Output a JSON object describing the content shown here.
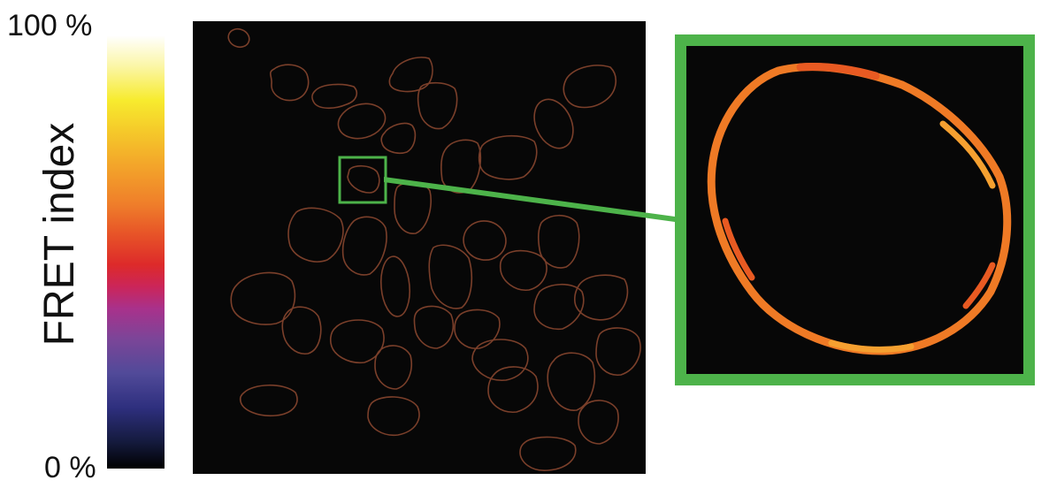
{
  "colorbar": {
    "max_label": "100 %",
    "min_label": "0 %",
    "title": "FRET index",
    "colormap": "black-blue-purple-red-orange-yellow-white"
  },
  "main_image": {
    "background_color": "#070707",
    "outline_color": "#7a3f2a",
    "cell_outline_count": 39
  },
  "inset": {
    "frame_color": "#4db34a",
    "outline_colors": [
      "#ef7a25",
      "#e85a22",
      "#f5a030"
    ]
  }
}
